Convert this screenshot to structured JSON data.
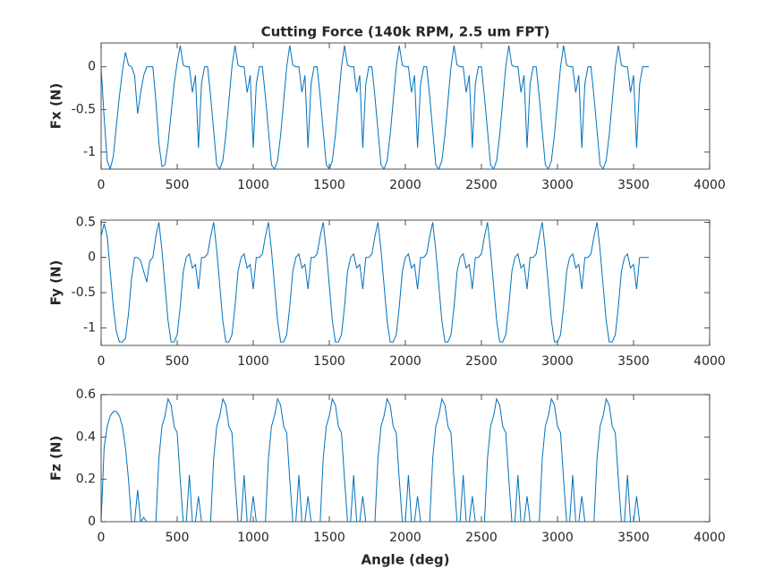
{
  "chart_data": [
    {
      "type": "line",
      "title": "Cutting Force (140k RPM, 2.5 um FPT)",
      "ylabel": "Fx (N)",
      "x": [
        0,
        20,
        40,
        60,
        80,
        100,
        120,
        140,
        160,
        180,
        200,
        220,
        240,
        260,
        280,
        300,
        320,
        340,
        360,
        380,
        400,
        420,
        440,
        460,
        480,
        500,
        520,
        540,
        560,
        580,
        600,
        620,
        640,
        660,
        680,
        700,
        720,
        740,
        760,
        780,
        800,
        820,
        840,
        860,
        880,
        900,
        920,
        940,
        960,
        980,
        1000,
        1020,
        1040,
        1060,
        1080,
        1100,
        1120,
        1140,
        1160,
        1180,
        1200,
        1220,
        1240,
        1260,
        1280,
        1300,
        1320,
        1340,
        1360,
        1380,
        1400,
        1420,
        1440,
        1460,
        1480,
        1500,
        1520,
        1540,
        1560,
        1580,
        1600,
        1620,
        1640,
        1660,
        1680,
        1700,
        1720,
        1740,
        1760,
        1780,
        1800,
        1820,
        1840,
        1860,
        1880,
        1900,
        1920,
        1940,
        1960,
        1980,
        2000,
        2020,
        2040,
        2060,
        2080,
        2100,
        2120,
        2140,
        2160,
        2180,
        2200,
        2220,
        2240,
        2260,
        2280,
        2300,
        2320,
        2340,
        2360,
        2380,
        2400,
        2420,
        2440,
        2460,
        2480,
        2500,
        2520,
        2540,
        2560,
        2580,
        2600,
        2620,
        2640,
        2660,
        2680,
        2700,
        2720,
        2740,
        2760,
        2780,
        2800,
        2820,
        2840,
        2860,
        2880,
        2900,
        2920,
        2940,
        2960,
        2980,
        3000,
        3020,
        3040,
        3060,
        3080,
        3100,
        3120,
        3140,
        3160,
        3180,
        3200,
        3220,
        3240,
        3260,
        3280,
        3300,
        3320,
        3340,
        3360,
        3380,
        3400,
        3420,
        3440,
        3460,
        3480,
        3500,
        3520,
        3540,
        3560,
        3580,
        3600
      ],
      "series": [
        {
          "color": "#0072bd",
          "values": [
            0,
            -0.6,
            -1.1,
            -1.2,
            -1.05,
            -0.7,
            -0.35,
            -0.05,
            0.17,
            0.02,
            0,
            -0.1,
            -0.55,
            -0.3,
            -0.1,
            0,
            0,
            0,
            -0.4,
            -0.9,
            -1.17,
            -1.15,
            -0.9,
            -0.55,
            -0.2,
            0.05,
            0.25,
            0.02,
            0,
            0,
            -0.3,
            -0.1,
            -0.95,
            -0.2,
            0,
            0,
            -0.35,
            -0.75,
            -1.15,
            -1.2,
            -1.1,
            -0.8,
            -0.4,
            0,
            0.25,
            0.02,
            0,
            0,
            -0.3,
            -0.1,
            -0.95,
            -0.2,
            0,
            0,
            -0.35,
            -0.75,
            -1.15,
            -1.2,
            -1.1,
            -0.8,
            -0.4,
            0,
            0.25,
            0.02,
            0,
            0,
            -0.3,
            -0.1,
            -0.95,
            -0.2,
            0,
            0,
            -0.35,
            -0.75,
            -1.15,
            -1.2,
            -1.1,
            -0.8,
            -0.4,
            0,
            0.25,
            0.02,
            0,
            0,
            -0.3,
            -0.1,
            -0.95,
            -0.2,
            0,
            0,
            -0.35,
            -0.75,
            -1.15,
            -1.2,
            -1.1,
            -0.8,
            -0.4,
            0,
            0.25,
            0.02,
            0,
            0,
            -0.3,
            -0.1,
            -0.95,
            -0.2,
            0,
            0,
            -0.35,
            -0.75,
            -1.15,
            -1.2,
            -1.1,
            -0.8,
            -0.4,
            0,
            0.25,
            0.02,
            0,
            0,
            -0.3,
            -0.1,
            -0.95,
            -0.2,
            0,
            0,
            -0.35,
            -0.75,
            -1.15,
            -1.2,
            -1.1,
            -0.8,
            -0.4,
            0,
            0.25,
            0.02,
            0,
            0,
            -0.3,
            -0.1,
            -0.95,
            -0.2,
            0,
            0,
            -0.35,
            -0.75,
            -1.15,
            -1.2,
            -1.1,
            -0.8,
            -0.4,
            0,
            0.25,
            0.02,
            0,
            0,
            -0.3,
            -0.1,
            -0.95,
            -0.2,
            0,
            0,
            -0.35,
            -0.75,
            -1.15,
            -1.2,
            -1.1,
            -0.8,
            -0.4,
            0,
            0.25,
            0.02,
            0,
            0,
            -0.3,
            -0.1,
            -0.95,
            -0.2,
            0,
            0,
            0
          ]
        }
      ],
      "xlim": [
        0,
        4000
      ],
      "xticks": [
        0,
        500,
        1000,
        1500,
        2000,
        2500,
        3000,
        3500,
        4000
      ],
      "ylim": [
        -1.2,
        0.28
      ],
      "yticks": [
        -1,
        -0.5,
        0
      ]
    },
    {
      "type": "line",
      "ylabel": "Fy (N)",
      "x": [
        0,
        20,
        40,
        60,
        80,
        100,
        120,
        140,
        160,
        180,
        200,
        220,
        240,
        260,
        280,
        300,
        320,
        340,
        360,
        380,
        400,
        420,
        440,
        460,
        480,
        500,
        520,
        540,
        560,
        580,
        600,
        620,
        640,
        660,
        680,
        700,
        720,
        740,
        760,
        780,
        800,
        820,
        840,
        860,
        880,
        900,
        920,
        940,
        960,
        980,
        1000,
        1020,
        1040,
        1060,
        1080,
        1100,
        1120,
        1140,
        1160,
        1180,
        1200,
        1220,
        1240,
        1260,
        1280,
        1300,
        1320,
        1340,
        1360,
        1380,
        1400,
        1420,
        1440,
        1460,
        1480,
        1500,
        1520,
        1540,
        1560,
        1580,
        1600,
        1620,
        1640,
        1660,
        1680,
        1700,
        1720,
        1740,
        1760,
        1780,
        1800,
        1820,
        1840,
        1860,
        1880,
        1900,
        1920,
        1940,
        1960,
        1980,
        2000,
        2020,
        2040,
        2060,
        2080,
        2100,
        2120,
        2140,
        2160,
        2180,
        2200,
        2220,
        2240,
        2260,
        2280,
        2300,
        2320,
        2340,
        2360,
        2380,
        2400,
        2420,
        2440,
        2460,
        2480,
        2500,
        2520,
        2540,
        2560,
        2580,
        2600,
        2620,
        2640,
        2660,
        2680,
        2700,
        2720,
        2740,
        2760,
        2780,
        2800,
        2820,
        2840,
        2860,
        2880,
        2900,
        2920,
        2940,
        2960,
        2980,
        3000,
        3020,
        3040,
        3060,
        3080,
        3100,
        3120,
        3140,
        3160,
        3180,
        3200,
        3220,
        3240,
        3260,
        3280,
        3300,
        3320,
        3340,
        3360,
        3380,
        3400,
        3420,
        3440,
        3460,
        3480,
        3500,
        3520,
        3540,
        3560,
        3580,
        3600
      ],
      "series": [
        {
          "color": "#0072bd",
          "values": [
            0.3,
            0.48,
            0.3,
            -0.2,
            -0.7,
            -1.05,
            -1.2,
            -1.2,
            -1.15,
            -0.8,
            -0.3,
            0,
            0,
            -0.05,
            -0.2,
            -0.35,
            -0.05,
            0,
            0.3,
            0.5,
            0.1,
            -0.4,
            -0.9,
            -1.2,
            -1.2,
            -1.1,
            -0.7,
            -0.2,
            0,
            0.05,
            -0.15,
            -0.1,
            -0.45,
            0,
            0,
            0.05,
            0.3,
            0.5,
            0.1,
            -0.4,
            -0.9,
            -1.2,
            -1.2,
            -1.1,
            -0.7,
            -0.2,
            0,
            0.05,
            -0.15,
            -0.1,
            -0.45,
            0,
            0,
            0.05,
            0.3,
            0.5,
            0.1,
            -0.4,
            -0.9,
            -1.2,
            -1.2,
            -1.1,
            -0.7,
            -0.2,
            0,
            0.05,
            -0.15,
            -0.1,
            -0.45,
            0,
            0,
            0.05,
            0.3,
            0.5,
            0.1,
            -0.4,
            -0.9,
            -1.2,
            -1.2,
            -1.1,
            -0.7,
            -0.2,
            0,
            0.05,
            -0.15,
            -0.1,
            -0.45,
            0,
            0,
            0.05,
            0.3,
            0.5,
            0.1,
            -0.4,
            -0.9,
            -1.2,
            -1.2,
            -1.1,
            -0.7,
            -0.2,
            0,
            0.05,
            -0.15,
            -0.1,
            -0.45,
            0,
            0,
            0.05,
            0.3,
            0.5,
            0.1,
            -0.4,
            -0.9,
            -1.2,
            -1.2,
            -1.1,
            -0.7,
            -0.2,
            0,
            0.05,
            -0.15,
            -0.1,
            -0.45,
            0,
            0,
            0.05,
            0.3,
            0.5,
            0.1,
            -0.4,
            -0.9,
            -1.2,
            -1.2,
            -1.1,
            -0.7,
            -0.2,
            0,
            0.05,
            -0.15,
            -0.1,
            -0.45,
            0,
            0,
            0.05,
            0.3,
            0.5,
            0.1,
            -0.4,
            -0.9,
            -1.2,
            -1.2,
            -1.1,
            -0.7,
            -0.2,
            0,
            0.05,
            -0.15,
            -0.1,
            -0.45,
            0,
            0,
            0.05,
            0.3,
            0.5,
            0.1,
            -0.4,
            -0.9,
            -1.2,
            -1.2,
            -1.1,
            -0.7,
            -0.2,
            0,
            0.05,
            -0.15,
            -0.1,
            -0.45,
            0,
            0,
            0,
            0
          ]
        }
      ],
      "xlim": [
        0,
        4000
      ],
      "xticks": [
        0,
        500,
        1000,
        1500,
        2000,
        2500,
        3000,
        3500,
        4000
      ],
      "ylim": [
        -1.25,
        0.53
      ],
      "yticks": [
        -1,
        -0.5,
        0,
        0.5
      ]
    },
    {
      "type": "line",
      "ylabel": "Fz (N)",
      "xlabel": "Angle (deg)",
      "x": [
        0,
        20,
        40,
        60,
        80,
        100,
        120,
        140,
        160,
        180,
        200,
        220,
        240,
        260,
        280,
        300,
        320,
        340,
        360,
        380,
        400,
        420,
        440,
        460,
        480,
        500,
        520,
        540,
        560,
        580,
        600,
        620,
        640,
        660,
        680,
        700,
        720,
        740,
        760,
        780,
        800,
        820,
        840,
        860,
        880,
        900,
        920,
        940,
        960,
        980,
        1000,
        1020,
        1040,
        1060,
        1080,
        1100,
        1120,
        1140,
        1160,
        1180,
        1200,
        1220,
        1240,
        1260,
        1280,
        1300,
        1320,
        1340,
        1360,
        1380,
        1400,
        1420,
        1440,
        1460,
        1480,
        1500,
        1520,
        1540,
        1560,
        1580,
        1600,
        1620,
        1640,
        1660,
        1680,
        1700,
        1720,
        1740,
        1760,
        1780,
        1800,
        1820,
        1840,
        1860,
        1880,
        1900,
        1920,
        1940,
        1960,
        1980,
        2000,
        2020,
        2040,
        2060,
        2080,
        2100,
        2120,
        2140,
        2160,
        2180,
        2200,
        2220,
        2240,
        2260,
        2280,
        2300,
        2320,
        2340,
        2360,
        2380,
        2400,
        2420,
        2440,
        2460,
        2480,
        2500,
        2520,
        2540,
        2560,
        2580,
        2600,
        2620,
        2640,
        2660,
        2680,
        2700,
        2720,
        2740,
        2760,
        2780,
        2800,
        2820,
        2840,
        2860,
        2880,
        2900,
        2920,
        2940,
        2960,
        2980,
        3000,
        3020,
        3040,
        3060,
        3080,
        3100,
        3120,
        3140,
        3160,
        3180,
        3200,
        3220,
        3240,
        3260,
        3280,
        3300,
        3320,
        3340,
        3360,
        3380,
        3400,
        3420,
        3440,
        3460,
        3480,
        3500,
        3520,
        3540,
        3560,
        3580,
        3600
      ],
      "series": [
        {
          "color": "#0072bd",
          "values": [
            0,
            0.35,
            0.45,
            0.5,
            0.52,
            0.52,
            0.5,
            0.45,
            0.35,
            0.2,
            0,
            0,
            0.15,
            0,
            0.02,
            0,
            0,
            0,
            0,
            0.3,
            0.45,
            0.5,
            0.58,
            0.55,
            0.45,
            0.42,
            0.2,
            0,
            0,
            0.22,
            0,
            0,
            0.12,
            0,
            0,
            0,
            0,
            0.3,
            0.45,
            0.5,
            0.58,
            0.55,
            0.45,
            0.42,
            0.2,
            0,
            0,
            0.22,
            0,
            0,
            0.12,
            0,
            0,
            0,
            0,
            0.3,
            0.45,
            0.5,
            0.58,
            0.55,
            0.45,
            0.42,
            0.2,
            0,
            0,
            0.22,
            0,
            0,
            0.12,
            0,
            0,
            0,
            0,
            0.3,
            0.45,
            0.5,
            0.58,
            0.55,
            0.45,
            0.42,
            0.2,
            0,
            0,
            0.22,
            0,
            0,
            0.12,
            0,
            0,
            0,
            0,
            0.3,
            0.45,
            0.5,
            0.58,
            0.55,
            0.45,
            0.42,
            0.2,
            0,
            0,
            0.22,
            0,
            0,
            0.12,
            0,
            0,
            0,
            0,
            0.3,
            0.45,
            0.5,
            0.58,
            0.55,
            0.45,
            0.42,
            0.2,
            0,
            0,
            0.22,
            0,
            0,
            0.12,
            0,
            0,
            0,
            0,
            0.3,
            0.45,
            0.5,
            0.58,
            0.55,
            0.45,
            0.42,
            0.2,
            0,
            0,
            0.22,
            0,
            0,
            0.12,
            0,
            0,
            0,
            0,
            0.3,
            0.45,
            0.5,
            0.58,
            0.55,
            0.45,
            0.42,
            0.2,
            0,
            0,
            0.22,
            0,
            0,
            0.12,
            0,
            0,
            0,
            0,
            0.3,
            0.45,
            0.5,
            0.58,
            0.55,
            0.45,
            0.42,
            0.2,
            0,
            0,
            0.22,
            0,
            0,
            0.12,
            0,
            0,
            0,
            0
          ]
        }
      ],
      "xlim": [
        0,
        4000
      ],
      "xticks": [
        0,
        500,
        1000,
        1500,
        2000,
        2500,
        3000,
        3500,
        4000
      ],
      "ylim": [
        0,
        0.6
      ],
      "yticks": [
        0,
        0.2,
        0.4,
        0.6
      ]
    }
  ]
}
